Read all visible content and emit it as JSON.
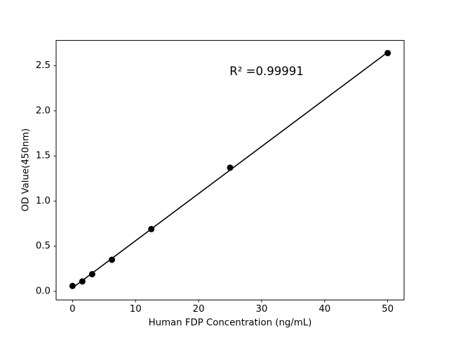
{
  "chart_data": {
    "type": "scatter",
    "title": "",
    "xlabel": "Human FDP Concentration (ng/mL)",
    "ylabel": "OD Value(450nm)",
    "points": [
      {
        "x": 0,
        "y": 0.06
      },
      {
        "x": 1.56,
        "y": 0.11
      },
      {
        "x": 3.12,
        "y": 0.19
      },
      {
        "x": 6.25,
        "y": 0.35
      },
      {
        "x": 12.5,
        "y": 0.69
      },
      {
        "x": 25,
        "y": 1.37
      },
      {
        "x": 50,
        "y": 2.64
      }
    ],
    "fit_line": {
      "type": "linear",
      "r_squared": 0.99991
    },
    "annotation": {
      "text": "R² =0.99991",
      "x": 30.8,
      "y": 2.43
    },
    "xlim": [
      -2.6,
      52.6
    ],
    "ylim": [
      -0.095,
      2.78
    ],
    "xticks": {
      "values": [
        0,
        10,
        20,
        30,
        40,
        50
      ],
      "labels": [
        "0",
        "10",
        "20",
        "30",
        "40",
        "50"
      ]
    },
    "yticks": {
      "values": [
        0.0,
        0.5,
        1.0,
        1.5,
        2.0,
        2.5
      ],
      "labels": [
        "0.0",
        "0.5",
        "1.0",
        "1.5",
        "2.0",
        "2.5"
      ]
    },
    "grid": false,
    "legend": null,
    "colors": {
      "marker": "#000000",
      "line": "#000000",
      "spine": "#000000",
      "background": "#ffffff"
    }
  }
}
